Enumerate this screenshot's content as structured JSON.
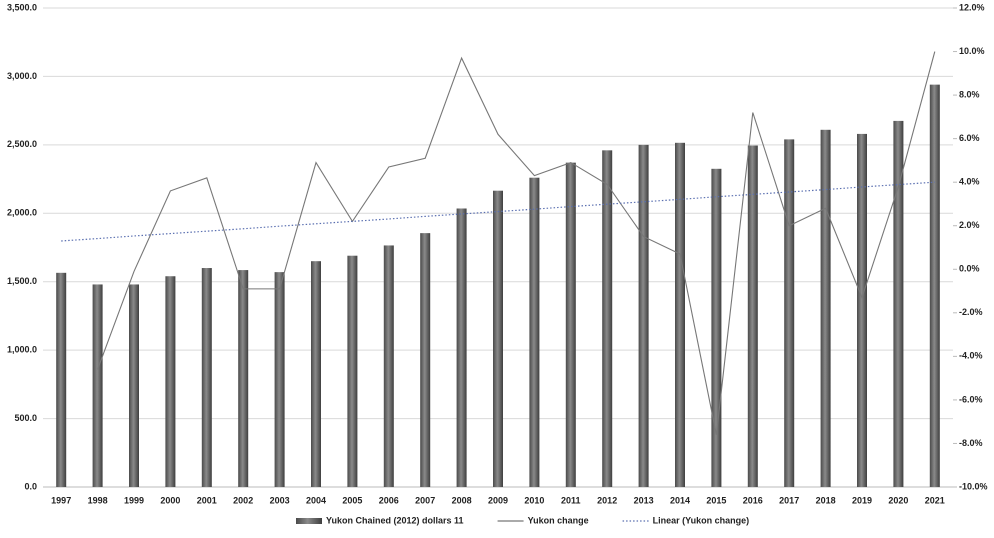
{
  "chart_data": {
    "type": "bar_line",
    "categories": [
      "1997",
      "1998",
      "1999",
      "2000",
      "2001",
      "2002",
      "2003",
      "2004",
      "2005",
      "2006",
      "2007",
      "2008",
      "2009",
      "2010",
      "2011",
      "2012",
      "2013",
      "2014",
      "2015",
      "2016",
      "2017",
      "2018",
      "2019",
      "2020",
      "2021"
    ],
    "series": [
      {
        "name": "Yukon Chained (2012) dollars 11",
        "type": "bar",
        "color": "#6b6b6b",
        "values": [
          1565,
          1480,
          1480,
          1540,
          1600,
          1585,
          1570,
          1650,
          1690,
          1765,
          1855,
          2035,
          2165,
          2260,
          2370,
          2460,
          2500,
          2515,
          2325,
          2495,
          2540,
          2610,
          2580,
          2675,
          2940
        ]
      },
      {
        "name": "Yukon change",
        "type": "line",
        "axis": "y2",
        "color": "#777777",
        "values": [
          null,
          -4.6,
          -0.1,
          3.6,
          4.2,
          -0.9,
          -0.9,
          4.9,
          2.2,
          4.7,
          5.1,
          9.7,
          6.2,
          4.3,
          4.9,
          3.9,
          1.5,
          0.7,
          -7.6,
          7.2,
          2.0,
          2.8,
          -1.3,
          3.8,
          10.0
        ]
      },
      {
        "name": "Linear (Yukon change)",
        "type": "trend",
        "axis": "y2",
        "color": "#5a6fb0",
        "values": [
          1.3,
          1.41,
          1.53,
          1.64,
          1.75,
          1.86,
          1.98,
          2.09,
          2.2,
          2.31,
          2.43,
          2.54,
          2.65,
          2.76,
          2.88,
          2.99,
          3.1,
          3.21,
          3.33,
          3.44,
          3.55,
          3.66,
          3.78,
          3.89,
          4.0
        ]
      }
    ],
    "ylim": [
      0,
      3500
    ],
    "yticks": [
      {
        "value": 0,
        "label": "0.0"
      },
      {
        "value": 500,
        "label": "500.0"
      },
      {
        "value": 1000,
        "label": "1,000.0"
      },
      {
        "value": 1500,
        "label": "1,500.0"
      },
      {
        "value": 2000,
        "label": "2,000.0"
      },
      {
        "value": 2500,
        "label": "2,500.0"
      },
      {
        "value": 3000,
        "label": "3,000.0"
      },
      {
        "value": 3500,
        "label": "3,500.0"
      }
    ],
    "y2lim": [
      -10,
      12
    ],
    "y2ticks": [
      {
        "value": -10,
        "label": "-10.0%"
      },
      {
        "value": -8,
        "label": "-8.0%"
      },
      {
        "value": -6,
        "label": "-6.0%"
      },
      {
        "value": -4,
        "label": "-4.0%"
      },
      {
        "value": -2,
        "label": "-2.0%"
      },
      {
        "value": 0,
        "label": "0.0%"
      },
      {
        "value": 2,
        "label": "2.0%"
      },
      {
        "value": 4,
        "label": "4.0%"
      },
      {
        "value": 6,
        "label": "6.0%"
      },
      {
        "value": 8,
        "label": "8.0%"
      },
      {
        "value": 10,
        "label": "10.0%"
      },
      {
        "value": 12,
        "label": "12.0%"
      }
    ],
    "grid": true,
    "legend": "bottom"
  }
}
